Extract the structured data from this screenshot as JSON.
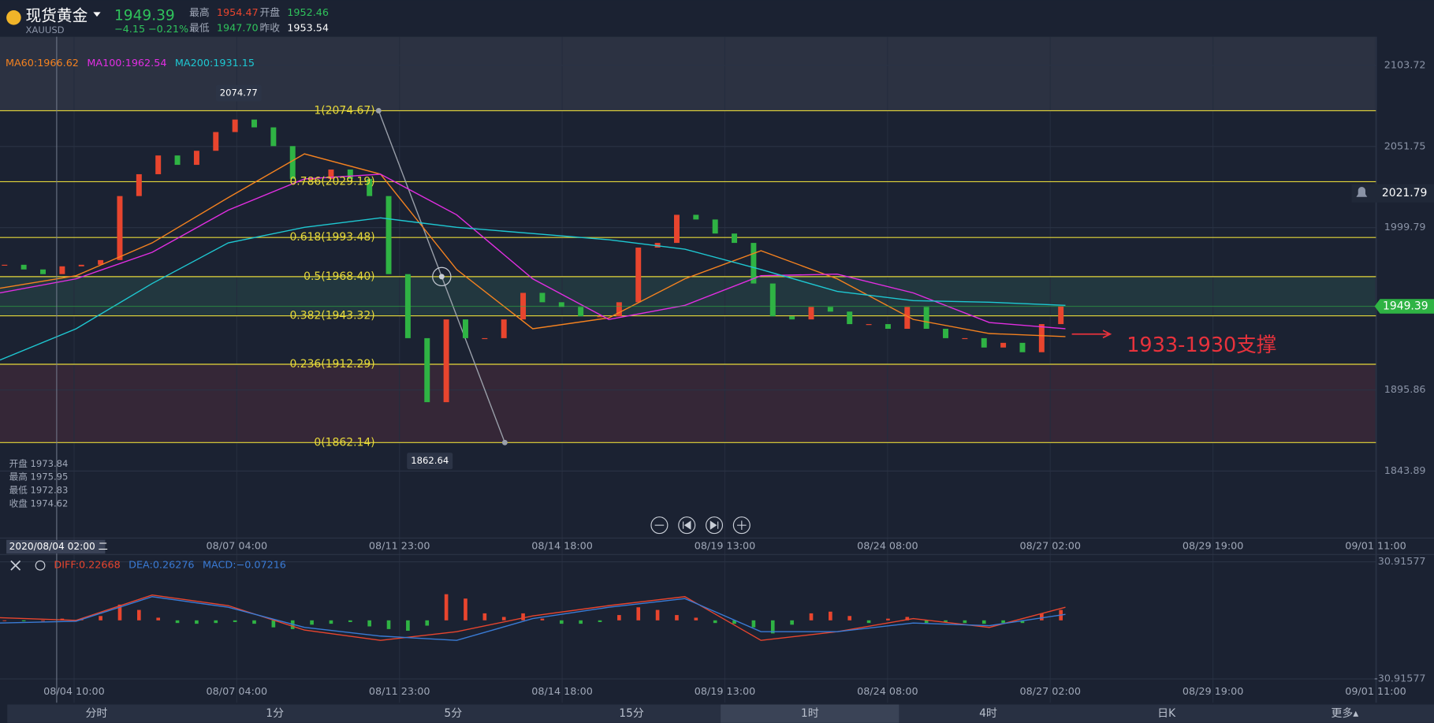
{
  "header": {
    "symbol": "现货黄金",
    "code": "XAUUSD",
    "price": "1949.39",
    "change": "−4.15",
    "change_pct": "−0.21%",
    "high_label": "最高",
    "high": "1954.47",
    "low_label": "最低",
    "low": "1947.70",
    "open_label": "开盘",
    "open": "1952.46",
    "prev_label": "昨收",
    "prev": "1953.54"
  },
  "ma_legend": [
    {
      "text": "MA60:1966.62",
      "color": "#f5821f"
    },
    {
      "text": "MA100:1962.54",
      "color": "#e22ee2"
    },
    {
      "text": "MA200:1931.15",
      "color": "#1ec8d2"
    }
  ],
  "price_chart": {
    "ylim": [
      1801,
      2122
    ],
    "yticks": [
      2103.72,
      2051.75,
      1999.79,
      1895.86,
      1843.89
    ],
    "closes": [
      1976,
      1973,
      1970,
      1975,
      1976,
      1979,
      2020,
      2034,
      2046,
      2040,
      2049,
      2061,
      2069,
      2064,
      2052,
      2031,
      2031,
      2037,
      2031,
      2020,
      1970,
      1929,
      1888,
      1941,
      1929,
      1929,
      1941,
      1958,
      1952,
      1949,
      1943,
      1943,
      1952,
      1987,
      1990,
      2008,
      2005,
      1996,
      1990,
      1964,
      1943,
      1941,
      1949,
      1946,
      1938,
      1938,
      1935,
      1949,
      1935,
      1929,
      1929,
      1923,
      1926,
      1920,
      1938,
      1949.39
    ],
    "up_color": "#e8452e",
    "down_color": "#2fb344",
    "ma": [
      {
        "name": "MA60",
        "color": "#f5821f",
        "values": [
          1961,
          1969,
          1990,
          2019,
          2047,
          2034,
          1973,
          1935,
          1942,
          1967,
          1985,
          1967,
          1941,
          1932,
          1930
        ]
      },
      {
        "name": "MA100",
        "color": "#e22ee2",
        "values": [
          1958,
          1967,
          1984,
          2011,
          2031,
          2034,
          2008,
          1967,
          1941,
          1950,
          1969,
          1970,
          1958,
          1939,
          1935
        ]
      },
      {
        "name": "MA200",
        "color": "#1ec8d2",
        "values": [
          1915,
          1935,
          1964,
          1990,
          2000,
          2006,
          2000,
          1996,
          1992,
          1986,
          1973,
          1959,
          1953,
          1952,
          1950
        ]
      }
    ],
    "fib_levels": [
      {
        "value": 2074.67,
        "label": "1(2074.67)"
      },
      {
        "value": 2029.19,
        "label": "0.786(2029.19)"
      },
      {
        "value": 1993.48,
        "label": "0.618(1993.48)"
      },
      {
        "value": 1968.4,
        "label": "0.5(1968.40)"
      },
      {
        "value": 1943.32,
        "label": "0.382(1943.32)"
      },
      {
        "value": 1912.29,
        "label": "0.236(1912.29)"
      },
      {
        "value": 1862.14,
        "label": "0(1862.14)"
      }
    ],
    "fib_color": "#e6d83a",
    "current_price": 1949.39,
    "alert_price": 2021.79,
    "high_marker": 2074.77,
    "low_marker": 1862.64,
    "annotation": "1933-1930支撑"
  },
  "cursor_info": {
    "date": "2020/08/04 02:00 二",
    "rows": [
      "开盘 1973.84",
      "最高 1975.95",
      "最低 1972.83",
      "收盘 1974.62"
    ]
  },
  "x_labels": [
    "08/04 10:00",
    "08/07 04:00",
    "08/11 23:00",
    "08/14 18:00",
    "08/19 13:00",
    "08/24 08:00",
    "08/27 02:00",
    "08/29 19:00",
    "09/01 11:00"
  ],
  "macd": {
    "legend": [
      {
        "text": "DIFF:0.22668",
        "color": "#e8452e"
      },
      {
        "text": "DEA:0.26276",
        "color": "#3a7bd5"
      },
      {
        "text": "MACD:−0.07216",
        "color": "#3a7bd5"
      }
    ],
    "ylim": [
      -30.91577,
      30.91577
    ],
    "yticks": [
      30.91577,
      -30.91577
    ],
    "histogram": [
      0,
      -0.5,
      0,
      0.9,
      0.9,
      2.3,
      8.3,
      5.5,
      1.4,
      -1.4,
      -1.8,
      -1.4,
      -0.9,
      -1.8,
      -3.7,
      -4.6,
      -2.3,
      -1.8,
      -0.9,
      -3.2,
      -4.6,
      -5.5,
      -2.8,
      13.8,
      11.5,
      3.7,
      1.8,
      3.7,
      0.9,
      -1.8,
      -1.8,
      -0.9,
      2.8,
      6.9,
      5.5,
      2.8,
      1.4,
      -1.4,
      -1.8,
      -3.7,
      -6.9,
      -2.3,
      3.7,
      4.6,
      2.3,
      -1.4,
      0.9,
      1.8,
      -1.4,
      -0.9,
      -1.4,
      -1.8,
      -1.4,
      -1.4,
      3.7,
      5.5
    ],
    "diff": {
      "name": "DIFF",
      "color": "#e8452e",
      "values": [
        1.4,
        0,
        13.4,
        7.8,
        -5.1,
        -10.6,
        -6,
        2.3,
        7.8,
        12.5,
        -10.6,
        -6,
        0.9,
        -3.7,
        6.9
      ]
    },
    "dea": {
      "name": "DEA",
      "color": "#3a7bd5",
      "values": [
        -1.4,
        -0.5,
        12.5,
        6.9,
        -3.7,
        -8.3,
        -10.6,
        0.9,
        6.9,
        11.5,
        -6,
        -6,
        -1.4,
        -2.8,
        3.2
      ]
    }
  },
  "tabs": [
    "分时",
    "1分",
    "5分",
    "15分",
    "1时",
    "4时",
    "日K",
    "更多▴"
  ],
  "active_tab": 4
}
